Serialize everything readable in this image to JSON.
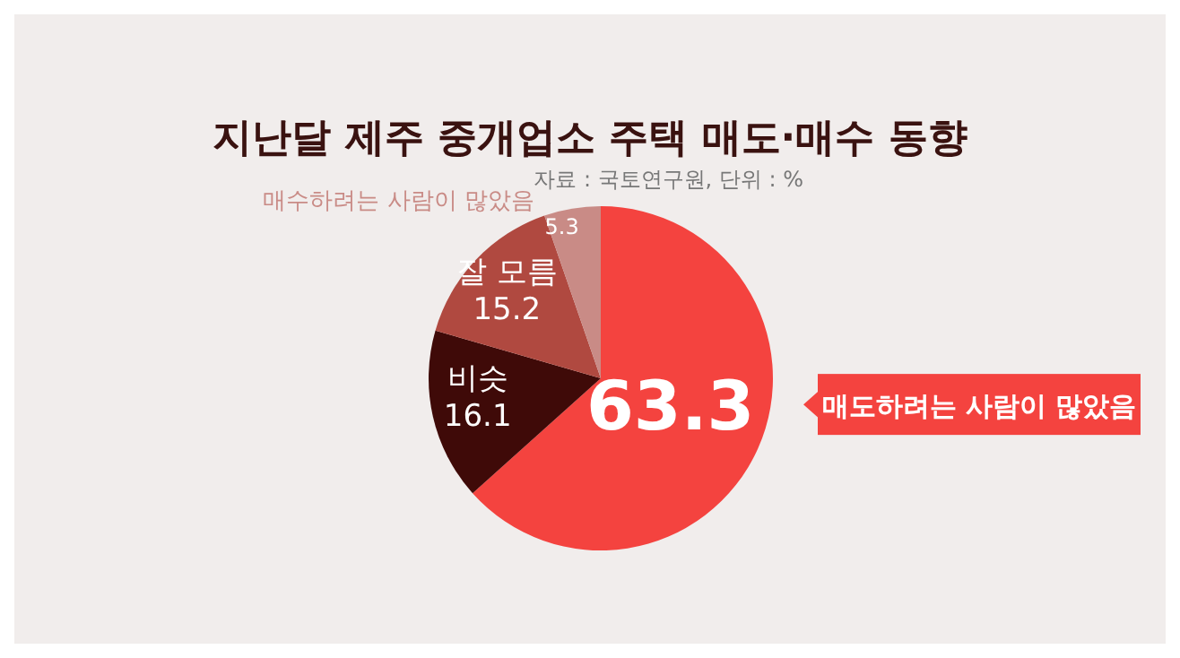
{
  "chart_data": {
    "type": "pie",
    "title": "지난달 제주 중개업소 주택 매도·매수 동향",
    "subtitle": "자료 : 국토연구원, 단위 : %",
    "categories": [
      "매도하려는 사람이 많았음",
      "비슷",
      "잘 모름",
      "매수하려는 사람이 많았음"
    ],
    "values": [
      63.3,
      16.1,
      15.2,
      5.3
    ],
    "colors": [
      "#f4433f",
      "#3f0a08",
      "#b04940",
      "#c98b86"
    ],
    "data_labels": true
  }
}
